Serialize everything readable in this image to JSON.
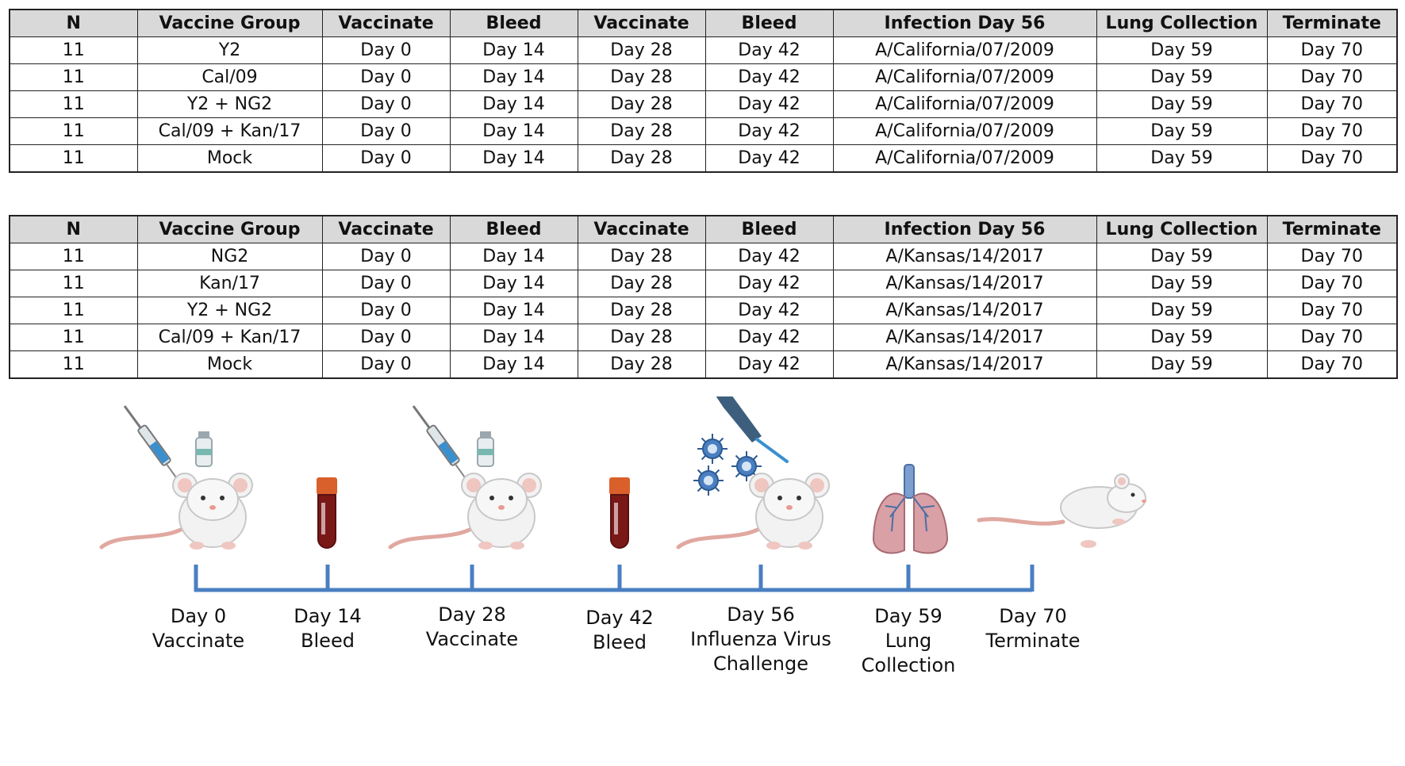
{
  "colors": {
    "header_bg": "#d9d9d9",
    "border": "#222222",
    "timeline": "#4a7fc1",
    "text": "#111111"
  },
  "tables": [
    {
      "headers": [
        "N",
        "Vaccine Group",
        "Vaccinate",
        "Bleed",
        "Vaccinate",
        "Bleed",
        "Infection Day 56",
        "Lung Collection",
        "Terminate"
      ],
      "rows": [
        [
          "11",
          "Y2",
          "Day 0",
          "Day 14",
          "Day 28",
          "Day 42",
          "A/California/07/2009",
          "Day 59",
          "Day 70"
        ],
        [
          "11",
          "Cal/09",
          "Day 0",
          "Day 14",
          "Day 28",
          "Day 42",
          "A/California/07/2009",
          "Day 59",
          "Day 70"
        ],
        [
          "11",
          "Y2 + NG2",
          "Day 0",
          "Day 14",
          "Day 28",
          "Day 42",
          "A/California/07/2009",
          "Day 59",
          "Day 70"
        ],
        [
          "11",
          "Cal/09 + Kan/17",
          "Day 0",
          "Day 14",
          "Day 28",
          "Day 42",
          "A/California/07/2009",
          "Day 59",
          "Day 70"
        ],
        [
          "11",
          "Mock",
          "Day 0",
          "Day 14",
          "Day 28",
          "Day 42",
          "A/California/07/2009",
          "Day 59",
          "Day 70"
        ]
      ]
    },
    {
      "headers": [
        "N",
        "Vaccine Group",
        "Vaccinate",
        "Bleed",
        "Vaccinate",
        "Bleed",
        "Infection Day 56",
        "Lung Collection",
        "Terminate"
      ],
      "rows": [
        [
          "11",
          "NG2",
          "Day 0",
          "Day 14",
          "Day 28",
          "Day 42",
          "A/Kansas/14/2017",
          "Day 59",
          "Day 70"
        ],
        [
          "11",
          "Kan/17",
          "Day 0",
          "Day 14",
          "Day 28",
          "Day 42",
          "A/Kansas/14/2017",
          "Day 59",
          "Day 70"
        ],
        [
          "11",
          "Y2 + NG2",
          "Day 0",
          "Day 14",
          "Day 28",
          "Day 42",
          "A/Kansas/14/2017",
          "Day 59",
          "Day 70"
        ],
        [
          "11",
          "Cal/09 + Kan/17",
          "Day 0",
          "Day 14",
          "Day 28",
          "Day 42",
          "A/Kansas/14/2017",
          "Day 59",
          "Day 70"
        ],
        [
          "11",
          "Mock",
          "Day 0",
          "Day 14",
          "Day 28",
          "Day 42",
          "A/Kansas/14/2017",
          "Day 59",
          "Day 70"
        ]
      ]
    }
  ],
  "timeline": {
    "events": [
      {
        "day": "Day 0",
        "lines": [
          "Vaccinate"
        ],
        "icon": "mouse-with-syringe-and-vial-icon"
      },
      {
        "day": "Day 14",
        "lines": [
          "Bleed"
        ],
        "icon": "blood-tube-icon"
      },
      {
        "day": "Day 28",
        "lines": [
          "Vaccinate"
        ],
        "icon": "mouse-with-syringe-and-vial-icon"
      },
      {
        "day": "Day 42",
        "lines": [
          "Bleed"
        ],
        "icon": "blood-tube-icon"
      },
      {
        "day": "Day 56",
        "lines": [
          "Influenza Virus",
          "Challenge"
        ],
        "icon": "mouse-with-pipette-and-virus-icon"
      },
      {
        "day": "Day 59",
        "lines": [
          "Lung",
          "Collection"
        ],
        "icon": "lungs-icon"
      },
      {
        "day": "Day 70",
        "lines": [
          "Terminate"
        ],
        "icon": "mouse-lying-icon"
      }
    ]
  }
}
